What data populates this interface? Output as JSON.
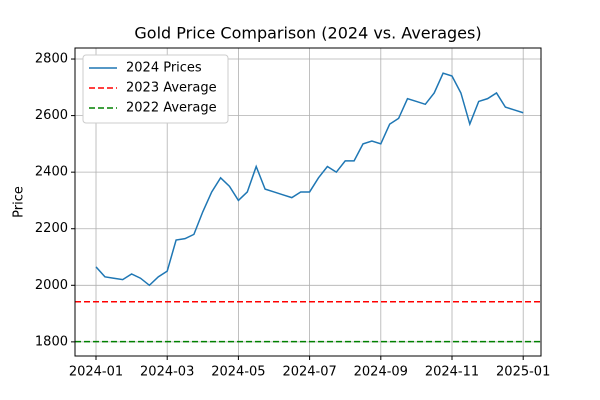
{
  "chart_data": {
    "type": "line",
    "title": "Gold Price Comparison (2024 vs. Averages)",
    "y_label": "Price",
    "x": [
      0,
      0.25,
      0.5,
      0.75,
      1,
      1.25,
      1.5,
      1.75,
      2,
      2.25,
      2.5,
      2.75,
      3,
      3.25,
      3.5,
      3.75,
      4,
      4.25,
      4.5,
      4.75,
      5,
      5.25,
      5.5,
      5.75,
      6,
      6.25,
      6.5,
      6.75,
      7,
      7.25,
      7.5,
      7.75,
      8,
      8.25,
      8.5,
      8.75,
      9,
      9.25,
      9.5,
      9.75,
      10,
      10.25,
      10.5,
      10.75,
      11,
      11.25,
      11.5,
      11.75,
      12
    ],
    "series": [
      {
        "name": "2024 Prices",
        "color": "#1f77b4",
        "style": "solid",
        "values": [
          2065,
          2030,
          2025,
          2020,
          2040,
          2025,
          2000,
          2030,
          2050,
          2160,
          2165,
          2180,
          2260,
          2330,
          2380,
          2350,
          2300,
          2330,
          2420,
          2340,
          2330,
          2320,
          2310,
          2330,
          2330,
          2380,
          2420,
          2400,
          2440,
          2440,
          2500,
          2510,
          2500,
          2570,
          2590,
          2660,
          2650,
          2640,
          2680,
          2750,
          2740,
          2680,
          2570,
          2650,
          2660,
          2680,
          2630,
          2620,
          2610
        ]
      },
      {
        "name": "2023 Average",
        "color": "#ff0000",
        "style": "dashed",
        "value": 1942
      },
      {
        "name": "2022 Average",
        "color": "#008000",
        "style": "dashed",
        "value": 1801
      }
    ],
    "xlim": [
      -0.59,
      12.5
    ],
    "ylim": [
      1750,
      2839
    ],
    "xticks": [
      {
        "value": 0,
        "label": "2024-01"
      },
      {
        "value": 2,
        "label": "2024-03"
      },
      {
        "value": 4,
        "label": "2024-05"
      },
      {
        "value": 6,
        "label": "2024-07"
      },
      {
        "value": 8,
        "label": "2024-09"
      },
      {
        "value": 10,
        "label": "2024-11"
      },
      {
        "value": 12,
        "label": "2025-01"
      }
    ],
    "yticks": [
      1800,
      2000,
      2200,
      2400,
      2600,
      2800
    ],
    "grid": true,
    "legend": "upper-left"
  }
}
